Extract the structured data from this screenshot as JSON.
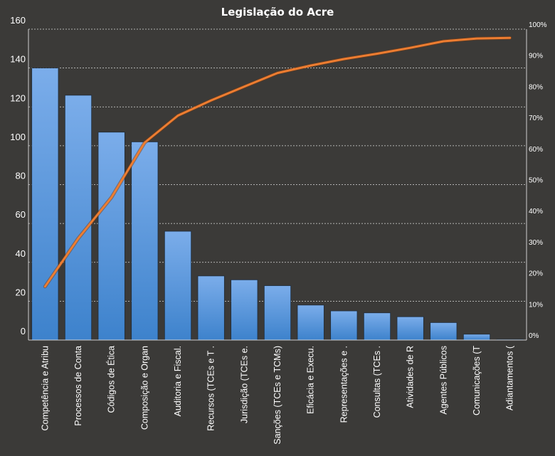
{
  "chart_data": {
    "type": "bar",
    "title": "Legislação do Acre",
    "categories": [
      "Competência e Atribu",
      "Processos de Conta",
      "Códigos de Ética",
      "Composição e Organ",
      "Auditoria e Fiscal.",
      "Recursos (TCEs e T .",
      "Jurisdição (TCEs e.",
      "Sanções (TCEs e TCMs)",
      "Eficácia e Execu.",
      "Representações e .",
      "Consultas (TCEs .",
      "Atividades de R",
      "Agentes Públicos",
      "Comunicações (T",
      "Adiantamentos ("
    ],
    "series": [
      {
        "type": "bar",
        "values": [
          140,
          126,
          107,
          102,
          56,
          33,
          31,
          28,
          18,
          15,
          14,
          12,
          9,
          3,
          0
        ]
      },
      {
        "type": "line",
        "axis": "right",
        "values": [
          0.172,
          0.327,
          0.459,
          0.635,
          0.722,
          0.771,
          0.815,
          0.859,
          0.883,
          0.904,
          0.921,
          0.94,
          0.961,
          0.97,
          0.972
        ]
      }
    ],
    "ylim": [
      0,
      160
    ],
    "yticks": [
      "0",
      "20",
      "40",
      "60",
      "80",
      "100",
      "120",
      "140",
      "160"
    ],
    "y2lim": [
      0,
      1
    ],
    "y2ticks": [
      "0%",
      "10%",
      "20%",
      "30%",
      "40%",
      "50%",
      "60%",
      "70%",
      "80%",
      "90%",
      "100%"
    ],
    "grid": true,
    "legend": "none",
    "colors": {
      "background": "#3b3a38",
      "bar_top": "#7badea",
      "bar_bottom": "#3d82cc",
      "line": "#ed7d31",
      "text": "#ffffff"
    }
  }
}
